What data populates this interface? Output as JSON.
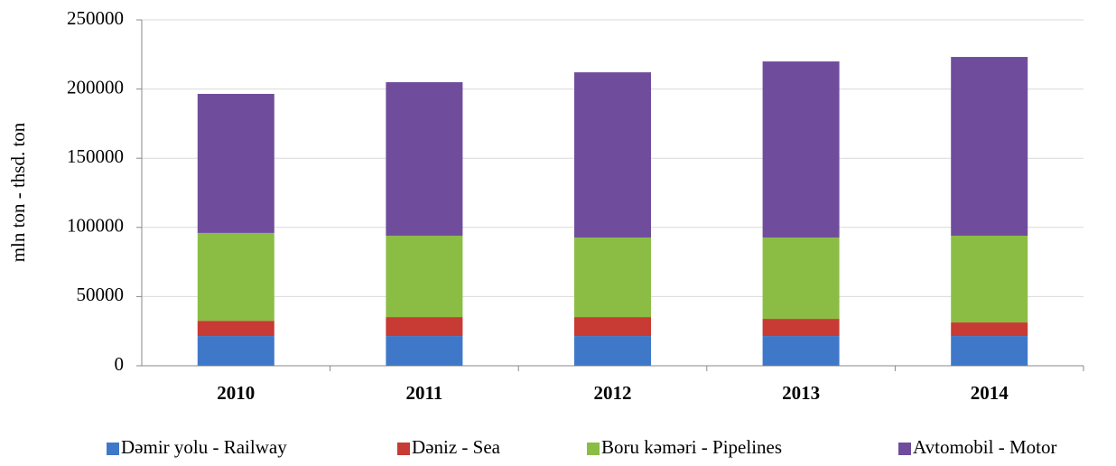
{
  "chart_data": {
    "type": "stacked_bar",
    "y_label": "mln ton - thsd. ton",
    "categories": [
      "2010",
      "2011",
      "2012",
      "2013",
      "2014"
    ],
    "series": [
      {
        "name": "Dəmir yolu - Railway",
        "color": "#3f78c9",
        "values": [
          21500,
          21500,
          21500,
          21500,
          21500
        ]
      },
      {
        "name": "Dəniz - Sea",
        "color": "#c83a34",
        "values": [
          11000,
          13700,
          13700,
          12400,
          9800
        ]
      },
      {
        "name": "Boru kəməri - Pipelines",
        "color": "#8bbd45",
        "values": [
          63500,
          58750,
          57500,
          58800,
          62700
        ]
      },
      {
        "name": "Avtomobil - Motor",
        "color": "#6f4d9c",
        "values": [
          100500,
          111000,
          119400,
          127250,
          129200
        ]
      }
    ],
    "ylim": [
      0,
      250000
    ],
    "yticks": [
      0,
      50000,
      100000,
      150000,
      200000,
      250000
    ],
    "grid": true,
    "legend": "bottom"
  }
}
